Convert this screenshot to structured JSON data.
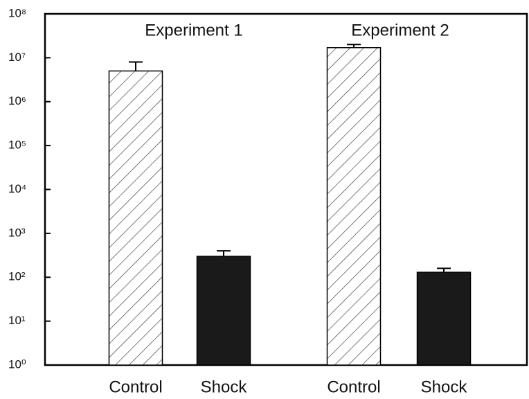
{
  "chart_data": {
    "type": "bar",
    "log": true,
    "groups": [
      {
        "label": "Experiment 1",
        "categories": [
          "Control",
          "Shock"
        ],
        "values": [
          5000000,
          300
        ],
        "errors": [
          3000000,
          100
        ]
      },
      {
        "label": "Experiment 2",
        "categories": [
          "Control",
          "Shock"
        ],
        "values": [
          17000000,
          130
        ],
        "errors": [
          3000000,
          30
        ]
      }
    ],
    "fills": [
      "hatch",
      "#1a1a1a"
    ],
    "ylim": [
      1,
      100000000
    ],
    "yticks": [
      {
        "value": 1,
        "label": "10⁰"
      },
      {
        "value": 10,
        "label": "10¹"
      },
      {
        "value": 100,
        "label": "10²"
      },
      {
        "value": 1000,
        "label": "10³"
      },
      {
        "value": 10000,
        "label": "10⁴"
      },
      {
        "value": 100000,
        "label": "10⁵"
      },
      {
        "value": 1000000,
        "label": "10⁶"
      },
      {
        "value": 10000000,
        "label": "10⁷"
      },
      {
        "value": 100000000,
        "label": "10⁸"
      }
    ]
  }
}
